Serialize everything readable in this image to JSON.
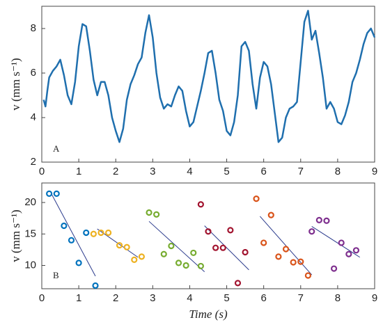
{
  "chart_data": [
    {
      "type": "line",
      "annotation": "A",
      "ylabel": "v (mm s⁻¹)",
      "color": "#1f6fae",
      "xlim": [
        0,
        9
      ],
      "xticks": [
        0,
        1,
        2,
        3,
        4,
        5,
        6,
        7,
        8,
        9
      ],
      "ylim": [
        2,
        9
      ],
      "yticks": [
        2,
        4,
        6,
        8
      ],
      "x": [
        0.05,
        0.1,
        0.15,
        0.2,
        0.3,
        0.4,
        0.5,
        0.6,
        0.7,
        0.8,
        0.9,
        1.0,
        1.1,
        1.2,
        1.3,
        1.4,
        1.5,
        1.6,
        1.7,
        1.8,
        1.9,
        2.0,
        2.1,
        2.2,
        2.3,
        2.4,
        2.5,
        2.6,
        2.7,
        2.8,
        2.9,
        3.0,
        3.1,
        3.2,
        3.3,
        3.4,
        3.5,
        3.6,
        3.7,
        3.8,
        3.9,
        4.0,
        4.1,
        4.2,
        4.3,
        4.4,
        4.5,
        4.6,
        4.7,
        4.8,
        4.9,
        5.0,
        5.1,
        5.2,
        5.3,
        5.4,
        5.5,
        5.6,
        5.7,
        5.8,
        5.9,
        6.0,
        6.1,
        6.2,
        6.3,
        6.4,
        6.5,
        6.6,
        6.7,
        6.8,
        6.9,
        7.0,
        7.1,
        7.2,
        7.3,
        7.4,
        7.5,
        7.6,
        7.7,
        7.8,
        7.9,
        8.0,
        8.1,
        8.2,
        8.3,
        8.4,
        8.5,
        8.6,
        8.7,
        8.8,
        8.9,
        9.0
      ],
      "values": [
        4.8,
        4.5,
        5.2,
        5.8,
        6.1,
        6.3,
        6.6,
        5.9,
        5.0,
        4.6,
        5.6,
        7.2,
        8.2,
        8.1,
        7.0,
        5.7,
        5.0,
        5.6,
        5.6,
        5.0,
        4.0,
        3.4,
        2.9,
        3.5,
        4.8,
        5.5,
        5.9,
        6.4,
        6.7,
        7.8,
        8.6,
        7.6,
        6.0,
        4.9,
        4.4,
        4.6,
        4.5,
        5.0,
        5.4,
        5.2,
        4.3,
        3.6,
        3.8,
        4.5,
        5.2,
        6.0,
        6.9,
        7.0,
        6.0,
        4.8,
        4.3,
        3.4,
        3.2,
        3.8,
        5.0,
        7.2,
        7.4,
        7.0,
        5.5,
        4.4,
        5.8,
        6.5,
        6.3,
        5.5,
        4.2,
        2.9,
        3.1,
        4.0,
        4.4,
        4.5,
        4.7,
        6.5,
        8.3,
        8.8,
        7.5,
        7.9,
        6.9,
        5.8,
        4.4,
        4.7,
        4.4,
        3.8,
        3.7,
        4.1,
        4.7,
        5.6,
        6.0,
        6.6,
        7.3,
        7.8,
        8.0,
        7.6
      ]
    },
    {
      "type": "scatter",
      "annotation": "B",
      "ylabel": "v (mm s⁻¹)",
      "xlabel": "Time (s)",
      "fit_color": "#2a3a8c",
      "xlim": [
        0,
        9
      ],
      "xticks": [
        0,
        1,
        2,
        3,
        4,
        5,
        6,
        7,
        8,
        9
      ],
      "ylim": [
        6.3,
        23.1
      ],
      "yticks": [
        10,
        15,
        20
      ],
      "series": [
        {
          "color": "#0072bd",
          "x": [
            0.2,
            0.4,
            0.6,
            0.8,
            1.0,
            1.2,
            1.45
          ],
          "values": [
            21.4,
            21.4,
            16.3,
            14.0,
            10.4,
            15.2,
            6.8
          ],
          "fit_x": [
            0.25,
            1.45
          ],
          "fit_y": [
            21.5,
            8.3
          ]
        },
        {
          "color": "#edb120",
          "x": [
            1.4,
            1.6,
            1.8,
            2.1,
            2.3,
            2.5,
            2.7
          ],
          "values": [
            15.0,
            15.2,
            15.2,
            13.2,
            12.9,
            10.9,
            11.4
          ],
          "fit_x": [
            1.5,
            2.6
          ],
          "fit_y": [
            15.8,
            11.3
          ]
        },
        {
          "color": "#77ac30",
          "x": [
            2.9,
            3.1,
            3.3,
            3.5,
            3.7,
            3.9,
            4.1,
            4.3
          ],
          "values": [
            18.4,
            18.1,
            11.8,
            13.1,
            10.4,
            10.0,
            12.0,
            9.9
          ],
          "fit_x": [
            2.9,
            4.4
          ],
          "fit_y": [
            17.0,
            9.0
          ]
        },
        {
          "color": "#a2142f",
          "x": [
            4.3,
            4.5,
            4.7,
            4.9,
            5.1,
            5.3,
            5.5
          ],
          "values": [
            19.7,
            15.4,
            12.8,
            12.8,
            15.6,
            7.2,
            12.1
          ],
          "fit_x": [
            4.4,
            5.6
          ],
          "fit_y": [
            16.3,
            9.3
          ]
        },
        {
          "color": "#d95319",
          "x": [
            5.8,
            6.0,
            6.2,
            6.4,
            6.6,
            6.8,
            7.0,
            7.2
          ],
          "values": [
            20.6,
            13.6,
            18.0,
            11.4,
            12.6,
            10.5,
            10.6,
            8.4
          ],
          "fit_x": [
            5.9,
            7.3
          ],
          "fit_y": [
            17.8,
            8.5
          ]
        },
        {
          "color": "#7e2f8e",
          "x": [
            7.3,
            7.5,
            7.7,
            7.9,
            8.1,
            8.3,
            8.5
          ],
          "values": [
            15.4,
            17.2,
            17.1,
            9.5,
            13.6,
            11.8,
            12.4
          ],
          "fit_x": [
            7.3,
            8.6
          ],
          "fit_y": [
            16.2,
            11.3
          ]
        }
      ]
    }
  ]
}
